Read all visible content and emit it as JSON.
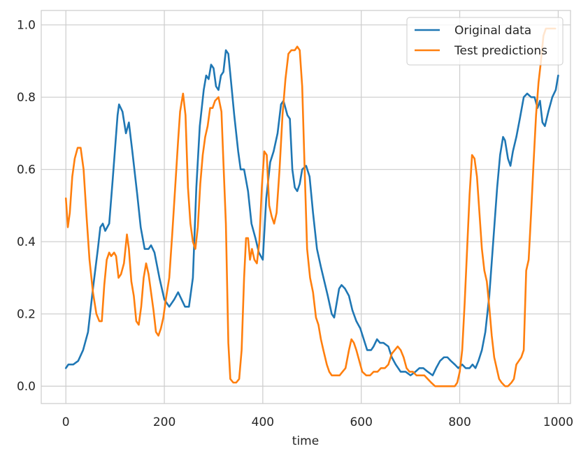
{
  "chart_data": {
    "type": "line",
    "title": "",
    "xlabel": "time",
    "ylabel": "",
    "xlim": [
      -50,
      1025
    ],
    "ylim": [
      -0.048,
      1.04
    ],
    "xticks": [
      0,
      200,
      400,
      600,
      800,
      1000
    ],
    "yticks": [
      0.0,
      0.2,
      0.4,
      0.6,
      0.8,
      1.0
    ],
    "xtick_labels": [
      "0",
      "200",
      "400",
      "600",
      "800",
      "1000"
    ],
    "ytick_labels": [
      "0.0",
      "0.2",
      "0.4",
      "0.6",
      "0.8",
      "1.0"
    ],
    "grid": true,
    "legend_position": "upper right",
    "series": [
      {
        "name": "Original data",
        "color": "#1f77b4",
        "points": [
          [
            0,
            0.05
          ],
          [
            5,
            0.06
          ],
          [
            15,
            0.06
          ],
          [
            25,
            0.07
          ],
          [
            35,
            0.1
          ],
          [
            45,
            0.15
          ],
          [
            55,
            0.27
          ],
          [
            65,
            0.38
          ],
          [
            70,
            0.44
          ],
          [
            75,
            0.45
          ],
          [
            80,
            0.43
          ],
          [
            88,
            0.45
          ],
          [
            95,
            0.57
          ],
          [
            100,
            0.66
          ],
          [
            105,
            0.75
          ],
          [
            108,
            0.78
          ],
          [
            115,
            0.76
          ],
          [
            122,
            0.7
          ],
          [
            128,
            0.73
          ],
          [
            135,
            0.65
          ],
          [
            145,
            0.53
          ],
          [
            152,
            0.44
          ],
          [
            160,
            0.38
          ],
          [
            168,
            0.38
          ],
          [
            173,
            0.39
          ],
          [
            180,
            0.37
          ],
          [
            190,
            0.3
          ],
          [
            200,
            0.24
          ],
          [
            210,
            0.22
          ],
          [
            220,
            0.24
          ],
          [
            228,
            0.26
          ],
          [
            235,
            0.24
          ],
          [
            242,
            0.22
          ],
          [
            250,
            0.22
          ],
          [
            258,
            0.3
          ],
          [
            265,
            0.55
          ],
          [
            272,
            0.72
          ],
          [
            280,
            0.82
          ],
          [
            285,
            0.86
          ],
          [
            290,
            0.85
          ],
          [
            295,
            0.89
          ],
          [
            300,
            0.88
          ],
          [
            305,
            0.83
          ],
          [
            310,
            0.82
          ],
          [
            315,
            0.86
          ],
          [
            320,
            0.87
          ],
          [
            325,
            0.93
          ],
          [
            330,
            0.92
          ],
          [
            335,
            0.85
          ],
          [
            342,
            0.75
          ],
          [
            350,
            0.65
          ],
          [
            355,
            0.6
          ],
          [
            362,
            0.6
          ],
          [
            370,
            0.54
          ],
          [
            377,
            0.45
          ],
          [
            385,
            0.41
          ],
          [
            392,
            0.37
          ],
          [
            400,
            0.35
          ],
          [
            407,
            0.52
          ],
          [
            415,
            0.62
          ],
          [
            422,
            0.65
          ],
          [
            430,
            0.7
          ],
          [
            437,
            0.78
          ],
          [
            442,
            0.79
          ],
          [
            450,
            0.75
          ],
          [
            455,
            0.74
          ],
          [
            460,
            0.6
          ],
          [
            465,
            0.55
          ],
          [
            470,
            0.54
          ],
          [
            475,
            0.56
          ],
          [
            480,
            0.6
          ],
          [
            488,
            0.61
          ],
          [
            495,
            0.58
          ],
          [
            502,
            0.48
          ],
          [
            510,
            0.38
          ],
          [
            518,
            0.33
          ],
          [
            525,
            0.29
          ],
          [
            532,
            0.25
          ],
          [
            540,
            0.2
          ],
          [
            545,
            0.19
          ],
          [
            550,
            0.23
          ],
          [
            555,
            0.27
          ],
          [
            560,
            0.28
          ],
          [
            567,
            0.27
          ],
          [
            575,
            0.25
          ],
          [
            582,
            0.21
          ],
          [
            590,
            0.18
          ],
          [
            598,
            0.16
          ],
          [
            605,
            0.13
          ],
          [
            612,
            0.1
          ],
          [
            620,
            0.1
          ],
          [
            625,
            0.11
          ],
          [
            632,
            0.13
          ],
          [
            638,
            0.12
          ],
          [
            645,
            0.12
          ],
          [
            655,
            0.11
          ],
          [
            662,
            0.08
          ],
          [
            670,
            0.06
          ],
          [
            680,
            0.04
          ],
          [
            690,
            0.04
          ],
          [
            700,
            0.03
          ],
          [
            710,
            0.04
          ],
          [
            718,
            0.05
          ],
          [
            726,
            0.05
          ],
          [
            735,
            0.04
          ],
          [
            745,
            0.03
          ],
          [
            752,
            0.05
          ],
          [
            760,
            0.07
          ],
          [
            768,
            0.08
          ],
          [
            775,
            0.08
          ],
          [
            782,
            0.07
          ],
          [
            790,
            0.06
          ],
          [
            797,
            0.05
          ],
          [
            805,
            0.06
          ],
          [
            812,
            0.05
          ],
          [
            820,
            0.05
          ],
          [
            826,
            0.06
          ],
          [
            832,
            0.05
          ],
          [
            838,
            0.07
          ],
          [
            845,
            0.1
          ],
          [
            852,
            0.15
          ],
          [
            860,
            0.25
          ],
          [
            868,
            0.4
          ],
          [
            876,
            0.55
          ],
          [
            882,
            0.64
          ],
          [
            888,
            0.69
          ],
          [
            892,
            0.68
          ],
          [
            898,
            0.63
          ],
          [
            903,
            0.61
          ],
          [
            908,
            0.65
          ],
          [
            915,
            0.69
          ],
          [
            922,
            0.74
          ],
          [
            930,
            0.8
          ],
          [
            937,
            0.81
          ],
          [
            945,
            0.8
          ],
          [
            952,
            0.8
          ],
          [
            958,
            0.77
          ],
          [
            963,
            0.79
          ],
          [
            968,
            0.73
          ],
          [
            973,
            0.72
          ],
          [
            980,
            0.76
          ],
          [
            988,
            0.8
          ],
          [
            995,
            0.82
          ],
          [
            1000,
            0.86
          ]
        ]
      },
      {
        "name": "Test predictions",
        "color": "#ff7f0e",
        "points": [
          [
            0,
            0.52
          ],
          [
            4,
            0.44
          ],
          [
            8,
            0.48
          ],
          [
            13,
            0.58
          ],
          [
            18,
            0.63
          ],
          [
            24,
            0.66
          ],
          [
            30,
            0.66
          ],
          [
            36,
            0.6
          ],
          [
            42,
            0.47
          ],
          [
            48,
            0.35
          ],
          [
            55,
            0.26
          ],
          [
            62,
            0.2
          ],
          [
            68,
            0.18
          ],
          [
            73,
            0.18
          ],
          [
            78,
            0.28
          ],
          [
            83,
            0.35
          ],
          [
            88,
            0.37
          ],
          [
            92,
            0.36
          ],
          [
            98,
            0.37
          ],
          [
            102,
            0.36
          ],
          [
            107,
            0.3
          ],
          [
            112,
            0.31
          ],
          [
            118,
            0.34
          ],
          [
            124,
            0.42
          ],
          [
            128,
            0.38
          ],
          [
            133,
            0.29
          ],
          [
            138,
            0.25
          ],
          [
            143,
            0.18
          ],
          [
            148,
            0.17
          ],
          [
            153,
            0.22
          ],
          [
            158,
            0.3
          ],
          [
            163,
            0.34
          ],
          [
            168,
            0.31
          ],
          [
            173,
            0.26
          ],
          [
            178,
            0.21
          ],
          [
            183,
            0.15
          ],
          [
            188,
            0.14
          ],
          [
            193,
            0.16
          ],
          [
            198,
            0.19
          ],
          [
            203,
            0.24
          ],
          [
            210,
            0.3
          ],
          [
            216,
            0.42
          ],
          [
            222,
            0.55
          ],
          [
            228,
            0.68
          ],
          [
            232,
            0.76
          ],
          [
            238,
            0.81
          ],
          [
            243,
            0.75
          ],
          [
            248,
            0.55
          ],
          [
            253,
            0.45
          ],
          [
            258,
            0.4
          ],
          [
            263,
            0.38
          ],
          [
            268,
            0.44
          ],
          [
            273,
            0.56
          ],
          [
            278,
            0.64
          ],
          [
            283,
            0.69
          ],
          [
            288,
            0.72
          ],
          [
            293,
            0.77
          ],
          [
            298,
            0.77
          ],
          [
            303,
            0.79
          ],
          [
            310,
            0.8
          ],
          [
            316,
            0.76
          ],
          [
            320,
            0.62
          ],
          [
            325,
            0.45
          ],
          [
            330,
            0.12
          ],
          [
            334,
            0.02
          ],
          [
            340,
            0.01
          ],
          [
            346,
            0.01
          ],
          [
            352,
            0.02
          ],
          [
            357,
            0.1
          ],
          [
            362,
            0.3
          ],
          [
            366,
            0.41
          ],
          [
            370,
            0.41
          ],
          [
            374,
            0.35
          ],
          [
            378,
            0.38
          ],
          [
            383,
            0.35
          ],
          [
            388,
            0.34
          ],
          [
            393,
            0.4
          ],
          [
            398,
            0.55
          ],
          [
            403,
            0.65
          ],
          [
            408,
            0.64
          ],
          [
            413,
            0.5
          ],
          [
            418,
            0.47
          ],
          [
            423,
            0.45
          ],
          [
            428,
            0.48
          ],
          [
            434,
            0.6
          ],
          [
            440,
            0.75
          ],
          [
            446,
            0.85
          ],
          [
            452,
            0.92
          ],
          [
            458,
            0.93
          ],
          [
            465,
            0.93
          ],
          [
            470,
            0.94
          ],
          [
            475,
            0.93
          ],
          [
            480,
            0.83
          ],
          [
            485,
            0.6
          ],
          [
            490,
            0.38
          ],
          [
            496,
            0.3
          ],
          [
            502,
            0.26
          ],
          [
            508,
            0.19
          ],
          [
            513,
            0.17
          ],
          [
            518,
            0.13
          ],
          [
            523,
            0.1
          ],
          [
            530,
            0.06
          ],
          [
            535,
            0.04
          ],
          [
            540,
            0.03
          ],
          [
            548,
            0.03
          ],
          [
            556,
            0.03
          ],
          [
            562,
            0.04
          ],
          [
            568,
            0.05
          ],
          [
            575,
            0.1
          ],
          [
            580,
            0.13
          ],
          [
            585,
            0.12
          ],
          [
            590,
            0.1
          ],
          [
            596,
            0.07
          ],
          [
            602,
            0.04
          ],
          [
            610,
            0.03
          ],
          [
            618,
            0.03
          ],
          [
            625,
            0.04
          ],
          [
            633,
            0.04
          ],
          [
            640,
            0.05
          ],
          [
            648,
            0.05
          ],
          [
            655,
            0.06
          ],
          [
            662,
            0.09
          ],
          [
            668,
            0.1
          ],
          [
            674,
            0.11
          ],
          [
            680,
            0.1
          ],
          [
            686,
            0.08
          ],
          [
            692,
            0.05
          ],
          [
            698,
            0.04
          ],
          [
            705,
            0.04
          ],
          [
            712,
            0.03
          ],
          [
            720,
            0.03
          ],
          [
            728,
            0.03
          ],
          [
            735,
            0.02
          ],
          [
            742,
            0.01
          ],
          [
            750,
            0.0
          ],
          [
            760,
            0.0
          ],
          [
            770,
            0.0
          ],
          [
            780,
            0.0
          ],
          [
            790,
            0.0
          ],
          [
            795,
            0.01
          ],
          [
            800,
            0.04
          ],
          [
            805,
            0.1
          ],
          [
            810,
            0.23
          ],
          [
            815,
            0.38
          ],
          [
            820,
            0.53
          ],
          [
            825,
            0.64
          ],
          [
            830,
            0.63
          ],
          [
            835,
            0.58
          ],
          [
            840,
            0.48
          ],
          [
            845,
            0.38
          ],
          [
            850,
            0.32
          ],
          [
            855,
            0.29
          ],
          [
            860,
            0.22
          ],
          [
            865,
            0.14
          ],
          [
            870,
            0.08
          ],
          [
            875,
            0.05
          ],
          [
            880,
            0.02
          ],
          [
            885,
            0.01
          ],
          [
            892,
            0.0
          ],
          [
            898,
            0.0
          ],
          [
            905,
            0.01
          ],
          [
            910,
            0.02
          ],
          [
            915,
            0.06
          ],
          [
            920,
            0.07
          ],
          [
            925,
            0.08
          ],
          [
            930,
            0.1
          ],
          [
            935,
            0.32
          ],
          [
            940,
            0.35
          ],
          [
            945,
            0.48
          ],
          [
            950,
            0.62
          ],
          [
            955,
            0.75
          ],
          [
            960,
            0.84
          ],
          [
            965,
            0.9
          ],
          [
            970,
            0.97
          ],
          [
            975,
            0.99
          ],
          [
            982,
            0.99
          ],
          [
            988,
            0.99
          ],
          [
            994,
            0.99
          ]
        ]
      }
    ]
  }
}
